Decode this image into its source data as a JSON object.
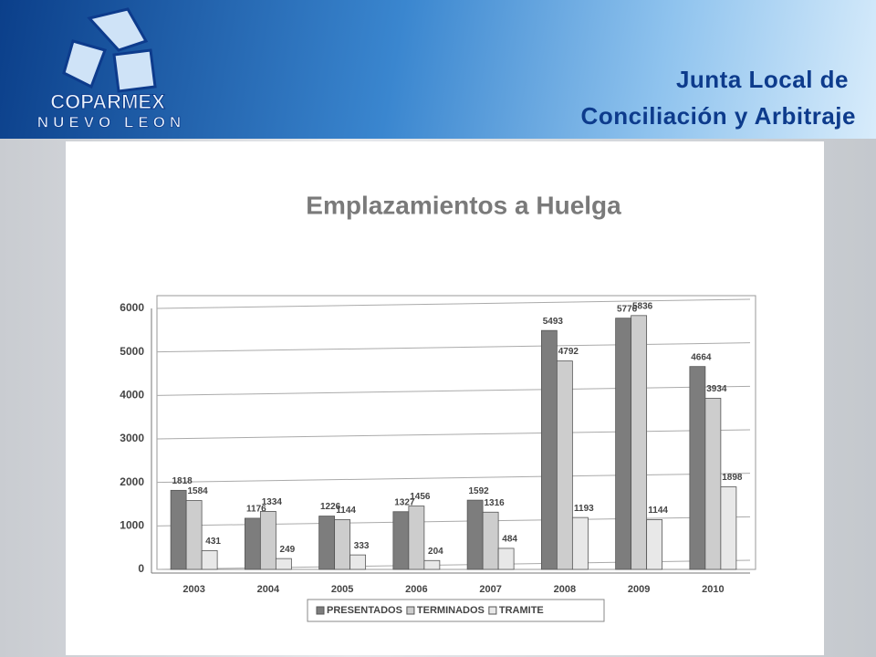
{
  "header": {
    "logo_name": "COPARMEX",
    "logo_region": "NUEVO LEON",
    "title_line1": "Junta Local de",
    "title_line2": "Conciliación y Arbitraje"
  },
  "chart_data": {
    "type": "bar",
    "title": "Emplazamientos a Huelga",
    "categories": [
      "2003",
      "2004",
      "2005",
      "2006",
      "2007",
      "2008",
      "2009",
      "2010"
    ],
    "series": [
      {
        "name": "PRESENTADOS",
        "color": "#7d7d7d",
        "values": [
          1818,
          1176,
          1226,
          1327,
          1592,
          5493,
          5776,
          4664
        ]
      },
      {
        "name": "TERMINADOS",
        "color": "#cdcdcd",
        "values": [
          1584,
          1334,
          1144,
          1456,
          1316,
          4792,
          5836,
          3934
        ]
      },
      {
        "name": "TRAMITE",
        "color": "#e8e8e8",
        "values": [
          431,
          249,
          333,
          204,
          484,
          1193,
          1144,
          1898
        ]
      }
    ],
    "ylim": [
      0,
      6000
    ],
    "yticks": [
      0,
      1000,
      2000,
      3000,
      4000,
      5000,
      6000
    ],
    "grid": true,
    "legend": "bottom"
  }
}
